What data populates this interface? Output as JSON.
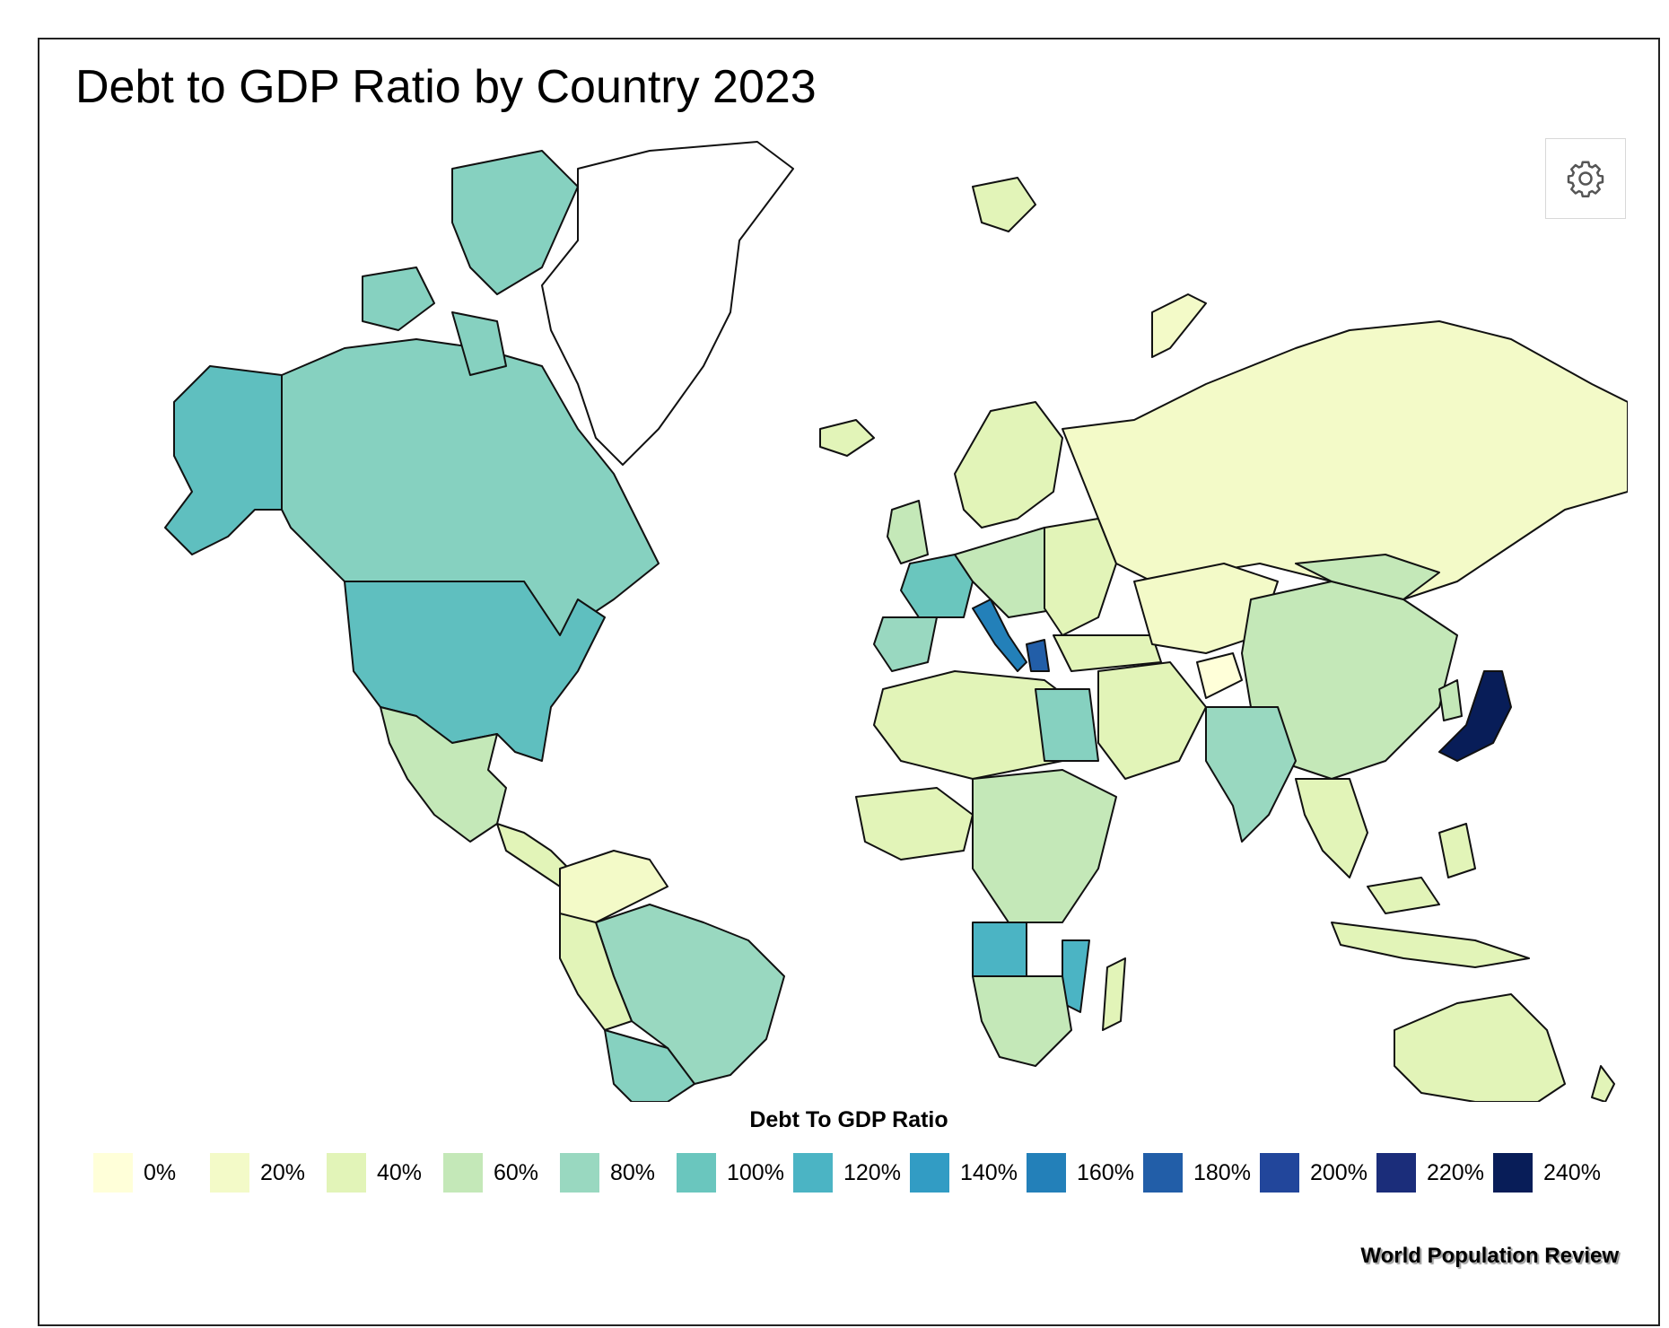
{
  "title": "Debt to GDP Ratio by Country 2023",
  "settings_button": {
    "icon": "gear-icon"
  },
  "legend": {
    "title": "Debt To GDP Ratio",
    "items": [
      {
        "label": "0%",
        "color": "#ffffd9"
      },
      {
        "label": "20%",
        "color": "#f3fac8"
      },
      {
        "label": "40%",
        "color": "#e2f4b8"
      },
      {
        "label": "60%",
        "color": "#c4e8b8"
      },
      {
        "label": "80%",
        "color": "#99d8c0"
      },
      {
        "label": "100%",
        "color": "#6ac6be"
      },
      {
        "label": "120%",
        "color": "#4bb4c4"
      },
      {
        "label": "140%",
        "color": "#329cc4"
      },
      {
        "label": "160%",
        "color": "#2380b9"
      },
      {
        "label": "180%",
        "color": "#225ea8"
      },
      {
        "label": "200%",
        "color": "#22469b"
      },
      {
        "label": "220%",
        "color": "#1b2d7a"
      },
      {
        "label": "240%",
        "color": "#081d58"
      }
    ]
  },
  "credit": "World Population Review",
  "map_colors": {
    "no_data": "#ffffff",
    "ocean": "#ffffff",
    "border": "#111111"
  }
}
